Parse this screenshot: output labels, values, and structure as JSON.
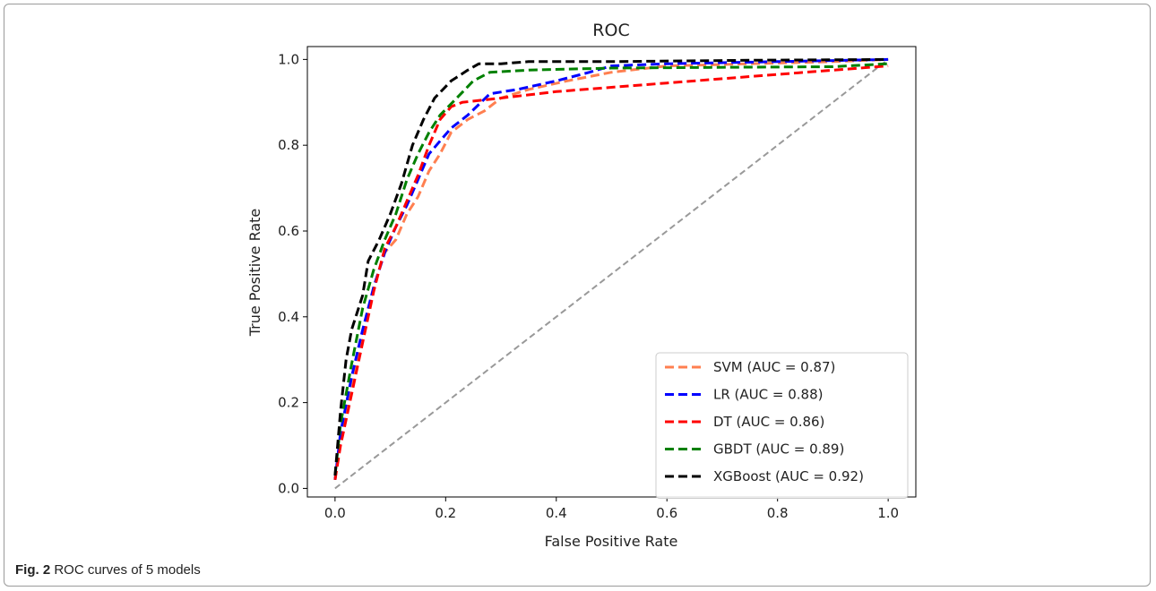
{
  "chart_data": {
    "type": "line",
    "title": "ROC",
    "xlabel": "False Positive Rate",
    "ylabel": "True Positive Rate",
    "xlim": [
      -0.05,
      1.05
    ],
    "ylim": [
      -0.02,
      1.03
    ],
    "xticks": [
      "0.0",
      "0.2",
      "0.4",
      "0.6",
      "0.8",
      "1.0"
    ],
    "yticks": [
      "0.0",
      "0.2",
      "0.4",
      "0.6",
      "0.8",
      "1.0"
    ],
    "legend_position": "lower-right",
    "baseline": {
      "color": "#999999",
      "points": [
        [
          0,
          0
        ],
        [
          1,
          1
        ]
      ]
    },
    "series": [
      {
        "name": "SVM (AUC = 0.87)",
        "color": "#ff7f50",
        "points": [
          [
            0,
            0.02
          ],
          [
            0.01,
            0.12
          ],
          [
            0.03,
            0.24
          ],
          [
            0.05,
            0.36
          ],
          [
            0.07,
            0.47
          ],
          [
            0.09,
            0.55
          ],
          [
            0.11,
            0.58
          ],
          [
            0.13,
            0.64
          ],
          [
            0.15,
            0.68
          ],
          [
            0.17,
            0.74
          ],
          [
            0.19,
            0.78
          ],
          [
            0.21,
            0.83
          ],
          [
            0.24,
            0.86
          ],
          [
            0.27,
            0.88
          ],
          [
            0.3,
            0.91
          ],
          [
            0.35,
            0.93
          ],
          [
            0.42,
            0.95
          ],
          [
            0.5,
            0.97
          ],
          [
            0.6,
            0.985
          ],
          [
            0.75,
            0.99
          ],
          [
            0.9,
            0.995
          ],
          [
            1.0,
            1.0
          ]
        ]
      },
      {
        "name": "LR (AUC = 0.88)",
        "color": "#0000ff",
        "points": [
          [
            0,
            0.02
          ],
          [
            0.01,
            0.13
          ],
          [
            0.03,
            0.26
          ],
          [
            0.05,
            0.37
          ],
          [
            0.07,
            0.47
          ],
          [
            0.09,
            0.55
          ],
          [
            0.11,
            0.61
          ],
          [
            0.13,
            0.66
          ],
          [
            0.15,
            0.72
          ],
          [
            0.17,
            0.78
          ],
          [
            0.19,
            0.81
          ],
          [
            0.21,
            0.84
          ],
          [
            0.24,
            0.87
          ],
          [
            0.28,
            0.92
          ],
          [
            0.33,
            0.93
          ],
          [
            0.4,
            0.95
          ],
          [
            0.46,
            0.97
          ],
          [
            0.5,
            0.985
          ],
          [
            0.6,
            0.99
          ],
          [
            0.8,
            0.995
          ],
          [
            1.0,
            1.0
          ]
        ]
      },
      {
        "name": "DT (AUC = 0.86)",
        "color": "#ff0000",
        "points": [
          [
            0,
            0.02
          ],
          [
            0.01,
            0.1
          ],
          [
            0.03,
            0.22
          ],
          [
            0.05,
            0.34
          ],
          [
            0.07,
            0.46
          ],
          [
            0.09,
            0.56
          ],
          [
            0.11,
            0.61
          ],
          [
            0.13,
            0.67
          ],
          [
            0.15,
            0.73
          ],
          [
            0.17,
            0.8
          ],
          [
            0.19,
            0.86
          ],
          [
            0.21,
            0.89
          ],
          [
            0.23,
            0.9
          ],
          [
            0.3,
            0.91
          ],
          [
            0.4,
            0.925
          ],
          [
            0.6,
            0.945
          ],
          [
            0.8,
            0.965
          ],
          [
            1.0,
            0.985
          ]
        ]
      },
      {
        "name": "GBDT (AUC = 0.89)",
        "color": "#008000",
        "points": [
          [
            0,
            0.03
          ],
          [
            0.01,
            0.15
          ],
          [
            0.03,
            0.29
          ],
          [
            0.05,
            0.42
          ],
          [
            0.07,
            0.51
          ],
          [
            0.09,
            0.58
          ],
          [
            0.11,
            0.64
          ],
          [
            0.13,
            0.72
          ],
          [
            0.15,
            0.78
          ],
          [
            0.17,
            0.83
          ],
          [
            0.19,
            0.87
          ],
          [
            0.22,
            0.91
          ],
          [
            0.25,
            0.95
          ],
          [
            0.28,
            0.97
          ],
          [
            0.35,
            0.975
          ],
          [
            0.5,
            0.98
          ],
          [
            0.75,
            0.982
          ],
          [
            0.9,
            0.983
          ],
          [
            1.0,
            0.99
          ]
        ]
      },
      {
        "name": "XGBoost (AUC = 0.92)",
        "color": "#000000",
        "points": [
          [
            0,
            0.03
          ],
          [
            0.01,
            0.18
          ],
          [
            0.02,
            0.3
          ],
          [
            0.03,
            0.37
          ],
          [
            0.05,
            0.45
          ],
          [
            0.06,
            0.53
          ],
          [
            0.08,
            0.58
          ],
          [
            0.1,
            0.64
          ],
          [
            0.12,
            0.71
          ],
          [
            0.14,
            0.8
          ],
          [
            0.16,
            0.86
          ],
          [
            0.18,
            0.91
          ],
          [
            0.21,
            0.95
          ],
          [
            0.24,
            0.975
          ],
          [
            0.26,
            0.99
          ],
          [
            0.3,
            0.99
          ],
          [
            0.35,
            0.995
          ],
          [
            0.5,
            0.995
          ],
          [
            0.75,
            0.998
          ],
          [
            1.0,
            1.0
          ]
        ]
      }
    ]
  },
  "caption": {
    "label": "Fig. 2",
    "text": "ROC curves of 5 models"
  }
}
